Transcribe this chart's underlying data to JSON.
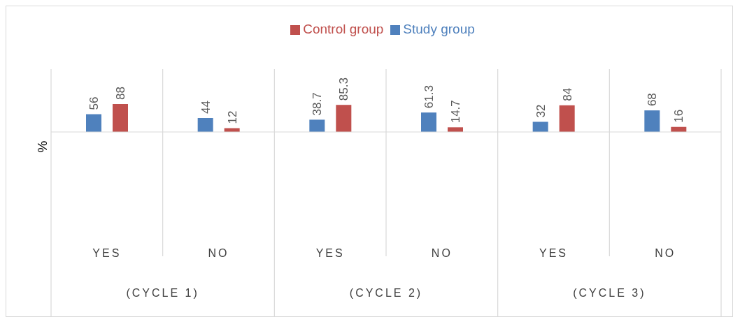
{
  "chart_data": {
    "type": "bar",
    "ylabel": "%",
    "categories": [
      "YES",
      "NO",
      "YES",
      "NO",
      "YES",
      "NO"
    ],
    "series": [
      {
        "name": "Study group",
        "color": "#4f81bd",
        "values": [
          56,
          44,
          38.7,
          61.3,
          32,
          68
        ]
      },
      {
        "name": "Control group",
        "color": "#c0504d",
        "values": [
          88,
          12,
          85.3,
          14.7,
          84,
          16
        ]
      }
    ],
    "annotations": [
      "(CYCLE 1)",
      "(CYCLE 2)",
      "(CYCLE 3)"
    ],
    "data_labels": true,
    "legend": "top",
    "grid": "x"
  }
}
